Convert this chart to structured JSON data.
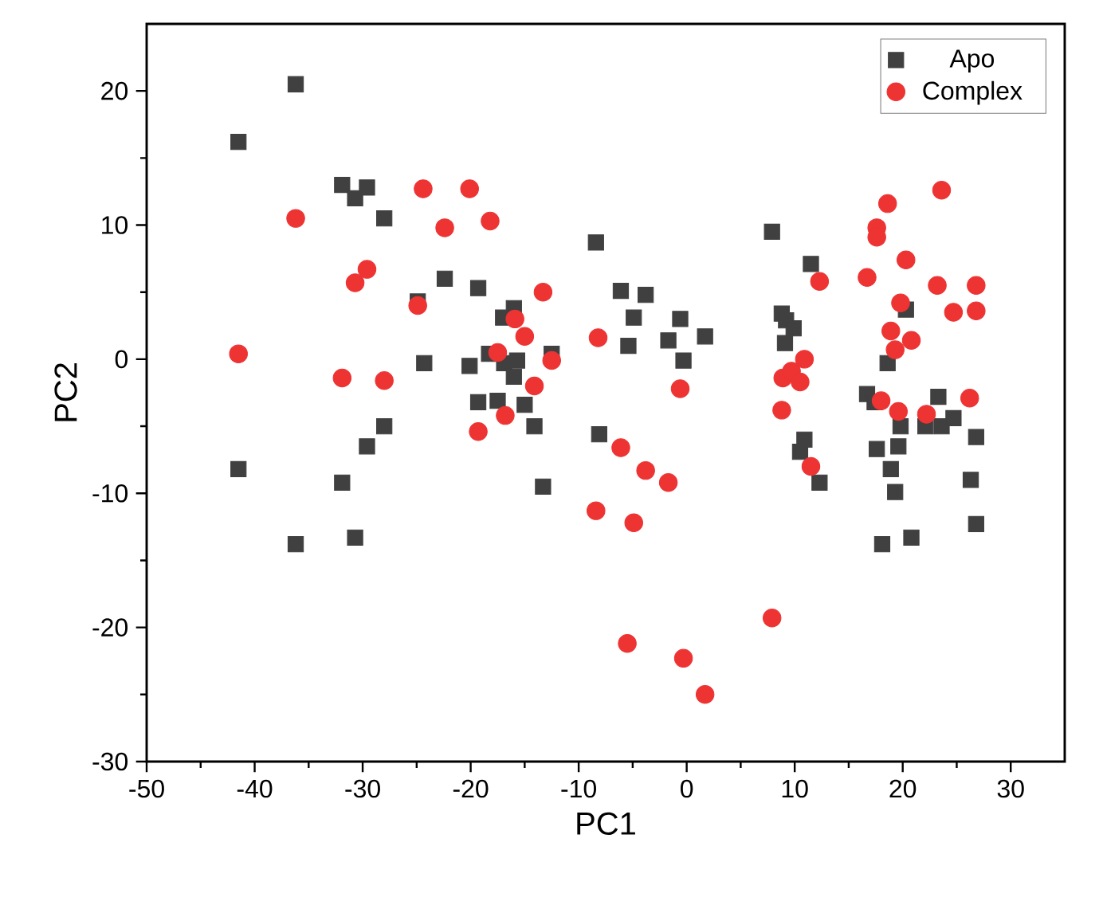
{
  "chart_data": {
    "type": "scatter",
    "xlabel": "PC1",
    "ylabel": "PC2",
    "xlim": [
      -50,
      35
    ],
    "xticks": [
      -50,
      -40,
      -30,
      -20,
      -10,
      0,
      10,
      20,
      30
    ],
    "ylim": [
      -30,
      25
    ],
    "yticks": [
      -30,
      -20,
      -10,
      0,
      10,
      20
    ],
    "grid": false,
    "legend": "top right",
    "series": [
      {
        "name": "Apo",
        "color": "#404040",
        "marker": "square",
        "x": [
          -41.5,
          -36.2,
          -31.9,
          -29.6,
          -30.7,
          -28.0,
          -22.4,
          -24.9,
          -24.3,
          -41.5,
          -31.9,
          -29.6,
          -28.0,
          -36.2,
          -30.7,
          -19.3,
          -16.0,
          -17.0,
          -18.3,
          -20.1,
          -16.9,
          -15.7,
          -16.0,
          -12.5,
          -19.3,
          -17.5,
          -15.0,
          -14.1,
          -13.3,
          -8.4,
          -6.1,
          -3.8,
          -4.9,
          -5.4,
          -0.6,
          -1.7,
          1.7,
          -0.3,
          -8.1,
          7.9,
          11.5,
          8.8,
          9.2,
          9.9,
          9.1,
          10.9,
          10.5,
          12.3,
          20.3,
          18.6,
          16.7,
          17.4,
          19.8,
          23.3,
          22.1,
          23.6,
          24.7,
          26.8,
          17.6,
          19.6,
          18.9,
          19.3,
          26.3,
          26.8,
          18.1,
          20.8
        ],
        "values": [
          16.2,
          20.5,
          13.0,
          12.8,
          12.0,
          10.5,
          6.0,
          4.3,
          -0.3,
          -8.2,
          -9.2,
          -6.5,
          -5.0,
          -13.8,
          -13.3,
          5.3,
          3.8,
          3.1,
          0.4,
          -0.5,
          -0.3,
          -0.1,
          -1.3,
          0.4,
          -3.2,
          -3.1,
          -3.4,
          -5.0,
          -9.5,
          8.7,
          5.1,
          4.8,
          3.1,
          1.0,
          3.0,
          1.4,
          1.7,
          -0.1,
          -5.6,
          9.5,
          7.1,
          3.4,
          2.9,
          2.3,
          1.2,
          -6.0,
          -6.9,
          -9.2,
          3.7,
          -0.3,
          -2.6,
          -3.2,
          -5.0,
          -2.8,
          -5.0,
          -5.0,
          -4.4,
          -5.8,
          -6.7,
          -6.5,
          -8.2,
          -9.9,
          -9.0,
          -12.3,
          -13.8,
          -13.3
        ]
      },
      {
        "name": "Complex",
        "color": "#ee3333",
        "marker": "circle",
        "x": [
          -36.2,
          -24.4,
          -22.4,
          -29.6,
          -30.7,
          -24.9,
          -41.5,
          -31.9,
          -28.0,
          -20.1,
          -18.2,
          -13.3,
          -15.9,
          -15.0,
          -17.5,
          -12.5,
          -14.1,
          -16.8,
          -19.3,
          -8.2,
          -0.6,
          -6.1,
          -3.8,
          -1.7,
          -8.4,
          -4.9,
          -5.5,
          -0.3,
          1.7,
          23.6,
          18.6,
          17.6,
          17.6,
          20.3,
          12.3,
          16.7,
          23.2,
          26.8,
          24.7,
          26.8,
          19.8,
          18.9,
          20.8,
          19.3,
          10.9,
          8.9,
          9.7,
          10.5,
          8.8,
          11.5,
          18.0,
          19.6,
          22.2,
          26.2,
          7.9
        ],
        "values": [
          10.5,
          12.7,
          9.8,
          6.7,
          5.7,
          4.0,
          0.4,
          -1.4,
          -1.6,
          12.7,
          10.3,
          5.0,
          3.0,
          1.7,
          0.5,
          -0.1,
          -2.0,
          -4.2,
          -5.4,
          1.6,
          -2.2,
          -6.6,
          -8.3,
          -9.2,
          -11.3,
          -12.2,
          -21.2,
          -22.3,
          -25.0,
          12.6,
          11.6,
          9.8,
          9.1,
          7.4,
          5.8,
          6.1,
          5.5,
          5.5,
          3.5,
          3.6,
          4.2,
          2.1,
          1.4,
          0.7,
          0.0,
          -1.4,
          -0.9,
          -1.7,
          -3.8,
          -8.0,
          -3.1,
          -3.9,
          -4.1,
          -2.9,
          -19.3
        ]
      }
    ]
  }
}
